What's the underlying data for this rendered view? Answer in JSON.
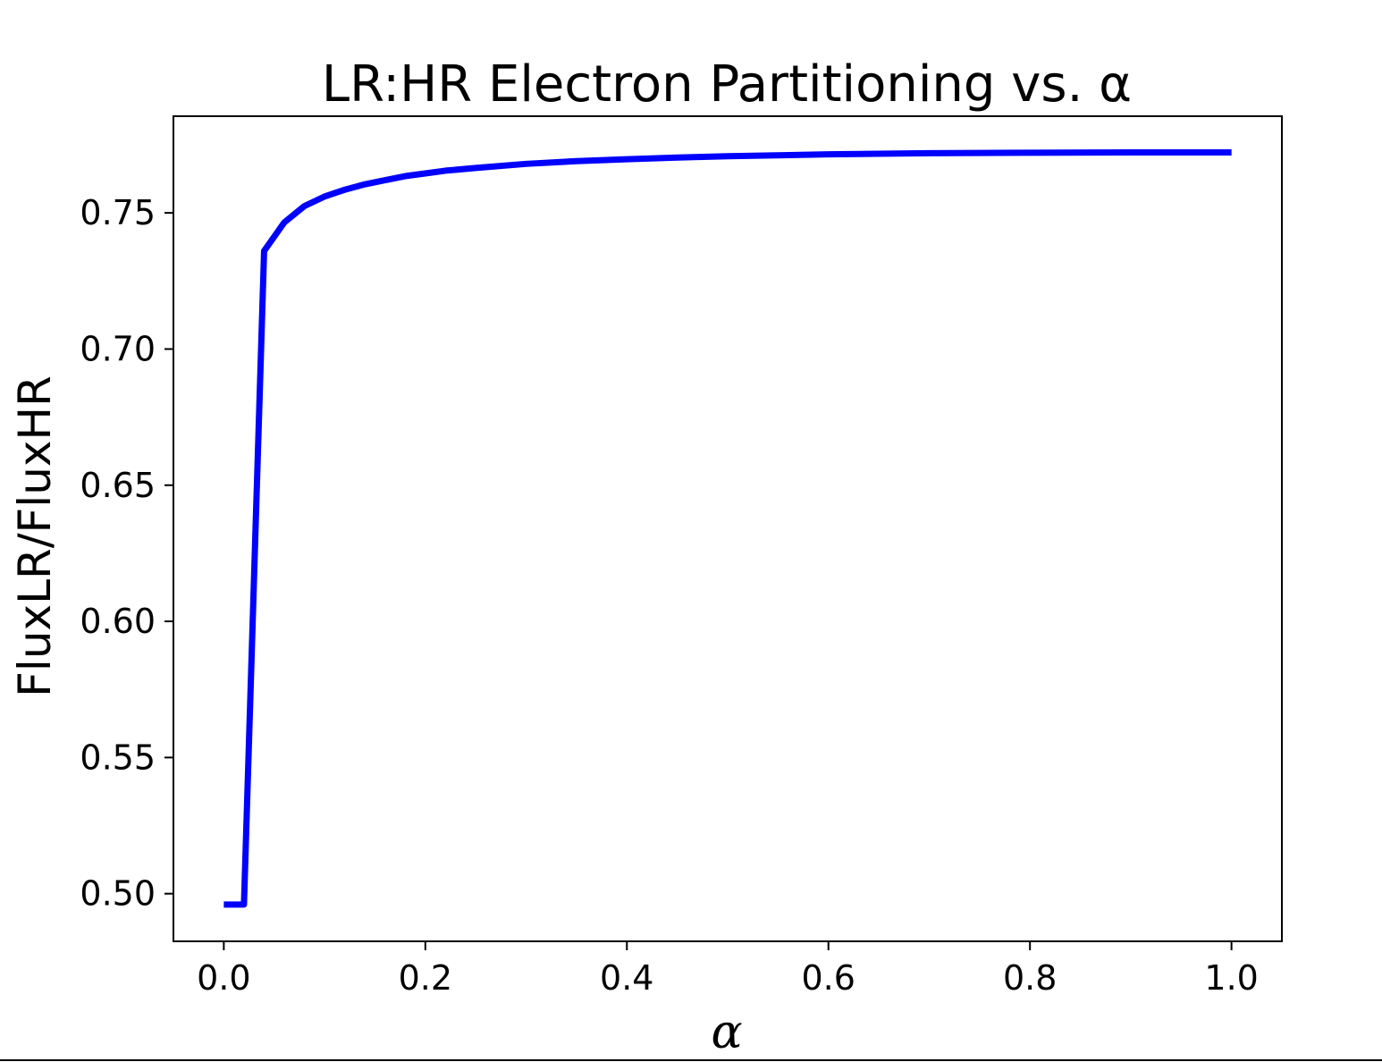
{
  "chart_data": {
    "type": "line",
    "title": "LR:HR Electron Partitioning vs. α",
    "xlabel": "α",
    "ylabel": "FluxLR/FluxHR",
    "xlim": [
      -0.05,
      1.05
    ],
    "ylim": [
      0.4825,
      0.7855
    ],
    "xticks": [
      0.0,
      0.2,
      0.4,
      0.6,
      0.8,
      1.0
    ],
    "xtick_labels": [
      "0.0",
      "0.2",
      "0.4",
      "0.6",
      "0.8",
      "1.0"
    ],
    "yticks": [
      0.5,
      0.55,
      0.6,
      0.65,
      0.7,
      0.75
    ],
    "ytick_labels": [
      "0.50",
      "0.55",
      "0.60",
      "0.65",
      "0.70",
      "0.75"
    ],
    "grid": false,
    "series": [
      {
        "color": "#0000ff",
        "x": [
          0.0,
          0.02,
          0.04,
          0.06,
          0.08,
          0.1,
          0.12,
          0.14,
          0.16,
          0.18,
          0.2,
          0.22,
          0.25,
          0.3,
          0.35,
          0.4,
          0.45,
          0.5,
          0.6,
          0.7,
          0.8,
          0.9,
          1.0
        ],
        "y": [
          0.496,
          0.496,
          0.736,
          0.7465,
          0.7525,
          0.756,
          0.7585,
          0.7605,
          0.762,
          0.7635,
          0.7645,
          0.7655,
          0.7665,
          0.768,
          0.769,
          0.7697,
          0.7703,
          0.7708,
          0.7715,
          0.7719,
          0.7721,
          0.7722,
          0.7722
        ]
      }
    ]
  }
}
